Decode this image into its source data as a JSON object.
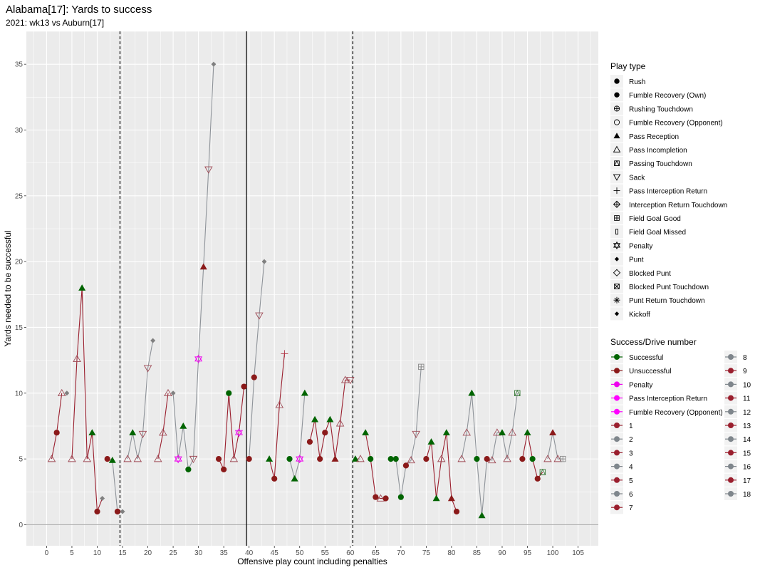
{
  "chart_data": {
    "type": "scatter",
    "title": "Alabama[17]: Yards to success",
    "subtitle": "2021: wk13 vs Auburn[17]",
    "xlabel": "Offensive play count including penalties",
    "ylabel": "Yards needed to be successful",
    "xlim": [
      -4,
      109
    ],
    "ylim": [
      -1.6,
      37.5
    ],
    "x_ticks": [
      0,
      5,
      10,
      15,
      20,
      25,
      30,
      35,
      40,
      45,
      50,
      55,
      60,
      65,
      70,
      75,
      80,
      85,
      90,
      95,
      100,
      105
    ],
    "y_ticks": [
      0,
      5,
      10,
      15,
      20,
      25,
      30,
      35
    ],
    "grid": true,
    "legend_position": "right",
    "vlines": [
      {
        "x": 14.5,
        "style": "dashed"
      },
      {
        "x": 39.5,
        "style": "solid"
      },
      {
        "x": 60.5,
        "style": "dashed"
      }
    ],
    "play_type_title": "Play type",
    "play_types": [
      {
        "name": "Rush",
        "shape": "circle"
      },
      {
        "name": "Fumble Recovery (Own)",
        "shape": "circle"
      },
      {
        "name": "Rushing Touchdown",
        "shape": "circle-plus"
      },
      {
        "name": "Fumble Recovery (Opponent)",
        "shape": "circle-open"
      },
      {
        "name": "Pass Reception",
        "shape": "triangle"
      },
      {
        "name": "Pass Incompletion",
        "shape": "triangle-open"
      },
      {
        "name": "Passing Touchdown",
        "shape": "square-triangle"
      },
      {
        "name": "Sack",
        "shape": "triangle-down-open"
      },
      {
        "name": "Pass Interception Return",
        "shape": "plus"
      },
      {
        "name": "Interception Return Touchdown",
        "shape": "diamond-plus"
      },
      {
        "name": "Field Goal Good",
        "shape": "square-plus"
      },
      {
        "name": "Field Goal Missed",
        "shape": "square-small"
      },
      {
        "name": "Penalty",
        "shape": "star-of-david"
      },
      {
        "name": "Punt",
        "shape": "diamond"
      },
      {
        "name": "Blocked Punt",
        "shape": "diamond-open"
      },
      {
        "name": "Blocked Punt Touchdown",
        "shape": "square-x"
      },
      {
        "name": "Punt Return Touchdown",
        "shape": "asterisk"
      },
      {
        "name": "Kickoff",
        "shape": "diamond"
      }
    ],
    "success_title": "Success/Drive number",
    "success_items": [
      {
        "name": "Successful",
        "color": "#006400"
      },
      {
        "name": "Unsuccessful",
        "color": "#8b1a1a"
      },
      {
        "name": "Penalty",
        "color": "#ee00ee"
      },
      {
        "name": "Pass Interception Return",
        "color": "#ff00ff"
      },
      {
        "name": "Fumble Recovery (Opponent)",
        "color": "#ff00ff"
      },
      {
        "name": "1",
        "color": "#9a1f2e"
      },
      {
        "name": "2",
        "color": "#7f868c"
      },
      {
        "name": "3",
        "color": "#9a1f2e"
      },
      {
        "name": "4",
        "color": "#7f868c"
      },
      {
        "name": "5",
        "color": "#9a1f2e"
      },
      {
        "name": "6",
        "color": "#7f868c"
      },
      {
        "name": "7",
        "color": "#9a1f2e"
      },
      {
        "name": "8",
        "color": "#7f868c"
      },
      {
        "name": "9",
        "color": "#9a1f2e"
      },
      {
        "name": "10",
        "color": "#7f868c"
      },
      {
        "name": "11",
        "color": "#9a1f2e"
      },
      {
        "name": "12",
        "color": "#7f868c"
      },
      {
        "name": "13",
        "color": "#9a1f2e"
      },
      {
        "name": "14",
        "color": "#7f868c"
      },
      {
        "name": "15",
        "color": "#9a1f2e"
      },
      {
        "name": "16",
        "color": "#7f868c"
      },
      {
        "name": "17",
        "color": "#9a1f2e"
      },
      {
        "name": "18",
        "color": "#7f868c"
      }
    ],
    "drives": [
      {
        "drive": 1,
        "points": [
          [
            1,
            5,
            "Pass Incompletion",
            "u"
          ],
          [
            2,
            7,
            "Rush",
            "u"
          ],
          [
            3,
            10,
            "Pass Incompletion",
            "u"
          ]
        ]
      },
      {
        "drive": 2,
        "points": [
          [
            4,
            10,
            "Punt",
            "u"
          ]
        ]
      },
      {
        "drive": 3,
        "points": [
          [
            5,
            5,
            "Pass Incompletion",
            "u"
          ],
          [
            6,
            12.6,
            "Pass Incompletion",
            "u"
          ],
          [
            7,
            18,
            "Pass Reception",
            "s"
          ],
          [
            8,
            5,
            "Pass Incompletion",
            "u"
          ],
          [
            9,
            7,
            "Pass Reception",
            "s"
          ],
          [
            10,
            1,
            "Rush",
            "u"
          ],
          [
            11,
            2,
            "Punt",
            "u"
          ]
        ]
      },
      {
        "drive": 4,
        "points": [
          [
            12,
            5,
            "Rush",
            "u"
          ],
          [
            13,
            4.9,
            "Pass Reception",
            "s"
          ],
          [
            14,
            1,
            "Rush",
            "u"
          ]
        ]
      },
      {
        "drive": 5,
        "points": [
          [
            15,
            1,
            "Punt",
            "u"
          ]
        ]
      },
      {
        "drive": 6,
        "points": [
          [
            16,
            5,
            "Pass Incompletion",
            "u"
          ],
          [
            17,
            7,
            "Pass Reception",
            "s"
          ],
          [
            18,
            5,
            "Pass Incompletion",
            "u"
          ],
          [
            19,
            6.9,
            "Sack",
            "u"
          ],
          [
            20,
            11.9,
            "Sack",
            "u"
          ],
          [
            21,
            14,
            "Punt",
            "u"
          ]
        ]
      },
      {
        "drive": 7,
        "points": [
          [
            22,
            5,
            "Pass Incompletion",
            "u"
          ],
          [
            23,
            7,
            "Pass Incompletion",
            "u"
          ],
          [
            24,
            10,
            "Pass Incompletion",
            "u"
          ]
        ]
      },
      {
        "drive": 8,
        "points": [
          [
            25,
            10,
            "Punt",
            "u"
          ],
          [
            26,
            5,
            "Penalty",
            "p"
          ],
          [
            27,
            7.5,
            "Pass Reception",
            "s"
          ],
          [
            28,
            4.2,
            "Rush",
            "s"
          ],
          [
            29,
            5,
            "Sack",
            "u"
          ],
          [
            30,
            12.6,
            "Penalty",
            "p"
          ],
          [
            31,
            19.6,
            "Pass Reception",
            "u"
          ],
          [
            32,
            27,
            "Sack",
            "u"
          ],
          [
            33,
            35,
            "Punt",
            "u"
          ]
        ]
      },
      {
        "drive": 9,
        "points": [
          [
            34,
            5,
            "Rush",
            "u"
          ],
          [
            35,
            4.2,
            "Rush",
            "u"
          ],
          [
            36,
            10,
            "Rush",
            "s"
          ],
          [
            37,
            5,
            "Pass Incompletion",
            "u"
          ],
          [
            38,
            7,
            "Penalty",
            "p"
          ],
          [
            39,
            10.5,
            "Rush",
            "u"
          ]
        ]
      },
      {
        "drive": 10,
        "points": [
          [
            40,
            5,
            "Rush",
            "u"
          ],
          [
            41,
            11.2,
            "Rush",
            "u"
          ],
          [
            42,
            15.9,
            "Sack",
            "u"
          ],
          [
            43,
            20,
            "Punt",
            "u"
          ]
        ]
      },
      {
        "drive": 11,
        "points": [
          [
            44,
            5,
            "Pass Reception",
            "s"
          ],
          [
            45,
            3.5,
            "Rush",
            "u"
          ],
          [
            46,
            9.1,
            "Pass Incompletion",
            "u"
          ],
          [
            47,
            13,
            "Pass Interception Return",
            "u"
          ]
        ]
      },
      {
        "drive": 12,
        "points": [
          [
            48,
            5,
            "Rush",
            "s"
          ],
          [
            49,
            3.5,
            "Pass Reception",
            "s"
          ],
          [
            50,
            5,
            "Penalty",
            "p"
          ],
          [
            51,
            10,
            "Pass Reception",
            "s"
          ]
        ]
      },
      {
        "drive": 13,
        "points": [
          [
            52,
            6.3,
            "Rush",
            "u"
          ],
          [
            53,
            8,
            "Pass Reception",
            "s"
          ],
          [
            54,
            5,
            "Rush",
            "u"
          ],
          [
            55,
            7,
            "Rush",
            "u"
          ],
          [
            56,
            8,
            "Pass Reception",
            "s"
          ],
          [
            57,
            5,
            "Pass Reception",
            "u"
          ],
          [
            58,
            7.7,
            "Pass Incompletion",
            "u"
          ],
          [
            59,
            11,
            "Pass Incompletion",
            "u"
          ],
          [
            60,
            11,
            "Sack",
            "u"
          ]
        ]
      },
      {
        "drive": 14,
        "points": [
          [
            61,
            5,
            "Pass Reception",
            "s"
          ],
          [
            62,
            5,
            "Pass Incompletion",
            "u"
          ]
        ]
      },
      {
        "drive": 15,
        "points": [
          [
            63,
            7,
            "Pass Reception",
            "s"
          ],
          [
            64,
            5,
            "Rush",
            "s"
          ],
          [
            65,
            2.1,
            "Rush",
            "u"
          ],
          [
            66,
            2,
            "Pass Incompletion",
            "u"
          ],
          [
            67,
            2,
            "Rush",
            "u"
          ]
        ]
      },
      {
        "drive": 16,
        "points": [
          [
            68,
            5,
            "Rush",
            "s"
          ],
          [
            69,
            5,
            "Rush",
            "s"
          ],
          [
            70,
            2.1,
            "Rush",
            "s"
          ],
          [
            71,
            4.5,
            "Rush",
            "u"
          ],
          [
            72,
            4.9,
            "Pass Incompletion",
            "u"
          ],
          [
            73,
            6.9,
            "Sack",
            "u"
          ],
          [
            74,
            12,
            "Field Goal Good",
            "u"
          ]
        ]
      },
      {
        "drive": 17,
        "points": [
          [
            75,
            5,
            "Rush",
            "u"
          ],
          [
            76,
            6.3,
            "Pass Reception",
            "s"
          ],
          [
            77,
            2,
            "Pass Reception",
            "s"
          ],
          [
            78,
            5,
            "Pass Incompletion",
            "u"
          ],
          [
            79,
            7,
            "Pass Reception",
            "s"
          ],
          [
            80,
            2,
            "Pass Reception",
            "u"
          ],
          [
            81,
            1,
            "Rush",
            "u"
          ]
        ]
      },
      {
        "drive": 18,
        "points": [
          [
            82,
            5,
            "Pass Incompletion",
            "u"
          ],
          [
            83,
            7,
            "Pass Incompletion",
            "u"
          ],
          [
            84,
            10,
            "Pass Reception",
            "s"
          ],
          [
            85,
            5,
            "Rush",
            "s"
          ],
          [
            86,
            0.7,
            "Pass Reception",
            "s"
          ],
          [
            87,
            5,
            "Rush",
            "u"
          ],
          [
            88,
            4.9,
            "Pass Incompletion",
            "u"
          ],
          [
            89,
            7,
            "Pass Incompletion",
            "u"
          ],
          [
            90,
            7,
            "Pass Reception",
            "s"
          ],
          [
            91,
            5,
            "Pass Incompletion",
            "u"
          ],
          [
            92,
            7,
            "Pass Incompletion",
            "u"
          ],
          [
            93,
            10,
            "Passing Touchdown",
            "s"
          ]
        ]
      },
      {
        "drive": 19,
        "points": [
          [
            94,
            5,
            "Rush",
            "u"
          ],
          [
            95,
            7,
            "Pass Reception",
            "s"
          ],
          [
            96,
            5,
            "Rush",
            "s"
          ],
          [
            97,
            3.5,
            "Rush",
            "u"
          ],
          [
            98,
            4,
            "Passing Touchdown",
            "s"
          ]
        ]
      },
      {
        "drive": 20,
        "points": [
          [
            99,
            5,
            "Pass Incompletion",
            "u"
          ],
          [
            100,
            7,
            "Pass Reception",
            "u"
          ],
          [
            101,
            5,
            "Pass Incompletion",
            "u"
          ],
          [
            102,
            5,
            "Field Goal Good",
            "u"
          ]
        ]
      }
    ]
  }
}
